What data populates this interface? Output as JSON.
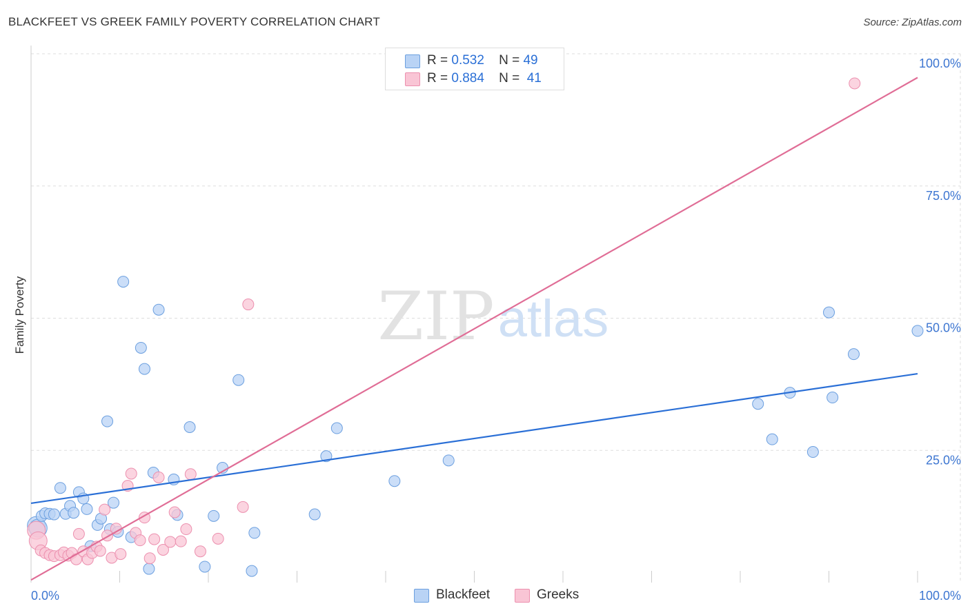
{
  "header": {
    "title": "BLACKFEET VS GREEK FAMILY POVERTY CORRELATION CHART",
    "source": "Source: ZipAtlas.com"
  },
  "watermark": {
    "zip": "ZIP",
    "atlas": "atlas"
  },
  "stats": {
    "blackfeet": {
      "r_label": "R =",
      "r_value": "0.532",
      "n_label": "N =",
      "n_value": "49"
    },
    "greeks": {
      "r_label": "R =",
      "r_value": "0.884",
      "n_label": "N =",
      "n_value": "41"
    }
  },
  "colors": {
    "blackfeet_fill": "#b9d3f5",
    "blackfeet_stroke": "#6b9fdf",
    "blackfeet_line": "#2a6fd6",
    "greeks_fill": "#f9c5d5",
    "greeks_stroke": "#ec8fae",
    "greeks_line": "#e06d96",
    "tick_label": "#3d76d1",
    "grid": "#dddddd"
  },
  "chart_data": {
    "type": "scatter",
    "title": "BLACKFEET VS GREEK FAMILY POVERTY CORRELATION CHART",
    "xlabel": "",
    "ylabel": "Family Poverty",
    "xlim": [
      0,
      100
    ],
    "ylim": [
      0,
      100
    ],
    "x_tick_labels": [
      "0.0%",
      "100.0%"
    ],
    "y_ticks": [
      25,
      50,
      75,
      100
    ],
    "y_tick_labels": [
      "25.0%",
      "50.0%",
      "75.0%",
      "100.0%"
    ],
    "grid": true,
    "legend": "bottom-center",
    "series": [
      {
        "name": "Blackfeet",
        "r": 0.532,
        "n": 49,
        "trend": {
          "x": [
            0,
            100
          ],
          "y": [
            15.0,
            39.5
          ]
        },
        "points": [
          [
            0.6,
            10.8
          ],
          [
            0.8,
            10.3
          ],
          [
            1.2,
            12.6
          ],
          [
            1.6,
            13.1
          ],
          [
            2.1,
            13.0
          ],
          [
            2.6,
            12.9
          ],
          [
            3.3,
            17.9
          ],
          [
            3.9,
            13.0
          ],
          [
            4.4,
            14.5
          ],
          [
            4.8,
            13.2
          ],
          [
            5.4,
            17.1
          ],
          [
            5.9,
            15.9
          ],
          [
            6.3,
            13.9
          ],
          [
            6.7,
            6.9
          ],
          [
            7.5,
            10.9
          ],
          [
            7.9,
            12.1
          ],
          [
            8.6,
            30.5
          ],
          [
            8.9,
            10.1
          ],
          [
            9.3,
            15.1
          ],
          [
            9.8,
            9.6
          ],
          [
            10.4,
            56.9
          ],
          [
            11.3,
            8.6
          ],
          [
            12.4,
            44.4
          ],
          [
            12.8,
            40.4
          ],
          [
            13.3,
            2.6
          ],
          [
            13.8,
            20.8
          ],
          [
            14.4,
            51.6
          ],
          [
            16.1,
            19.5
          ],
          [
            16.5,
            12.8
          ],
          [
            17.9,
            29.4
          ],
          [
            19.6,
            3.0
          ],
          [
            20.6,
            12.6
          ],
          [
            21.6,
            21.7
          ],
          [
            23.4,
            38.3
          ],
          [
            24.9,
            2.2
          ],
          [
            25.2,
            9.4
          ],
          [
            32.0,
            12.9
          ],
          [
            33.3,
            23.9
          ],
          [
            34.5,
            29.2
          ],
          [
            41.0,
            19.2
          ],
          [
            47.1,
            23.1
          ],
          [
            82.0,
            33.8
          ],
          [
            83.6,
            27.1
          ],
          [
            85.6,
            35.9
          ],
          [
            88.2,
            24.7
          ],
          [
            90.0,
            51.1
          ],
          [
            90.4,
            35.0
          ],
          [
            92.8,
            43.2
          ],
          [
            100.0,
            47.6
          ]
        ]
      },
      {
        "name": "Greeks",
        "r": 0.884,
        "n": 41,
        "trend": {
          "x": [
            0,
            100
          ],
          "y": [
            0.5,
            95.5
          ]
        },
        "points": [
          [
            0.6,
            9.9
          ],
          [
            0.8,
            7.9
          ],
          [
            1.1,
            6.1
          ],
          [
            1.6,
            5.6
          ],
          [
            2.1,
            5.2
          ],
          [
            2.6,
            5.0
          ],
          [
            3.3,
            5.2
          ],
          [
            3.7,
            5.7
          ],
          [
            4.2,
            5.1
          ],
          [
            4.6,
            5.6
          ],
          [
            5.1,
            4.4
          ],
          [
            5.4,
            9.2
          ],
          [
            5.9,
            5.9
          ],
          [
            6.4,
            4.4
          ],
          [
            6.9,
            5.6
          ],
          [
            7.4,
            6.8
          ],
          [
            7.8,
            6.0
          ],
          [
            8.3,
            13.8
          ],
          [
            8.6,
            8.9
          ],
          [
            9.1,
            4.7
          ],
          [
            9.6,
            10.2
          ],
          [
            10.1,
            5.4
          ],
          [
            10.9,
            18.3
          ],
          [
            11.3,
            20.6
          ],
          [
            11.8,
            9.4
          ],
          [
            12.3,
            8.0
          ],
          [
            12.8,
            12.3
          ],
          [
            13.4,
            4.6
          ],
          [
            13.9,
            8.2
          ],
          [
            14.4,
            19.9
          ],
          [
            14.9,
            6.2
          ],
          [
            15.7,
            7.7
          ],
          [
            16.2,
            13.3
          ],
          [
            16.9,
            7.8
          ],
          [
            17.5,
            10.1
          ],
          [
            18.0,
            20.5
          ],
          [
            19.1,
            5.9
          ],
          [
            21.1,
            8.3
          ],
          [
            23.9,
            14.3
          ],
          [
            24.5,
            52.6
          ],
          [
            92.9,
            94.4
          ]
        ]
      }
    ]
  }
}
